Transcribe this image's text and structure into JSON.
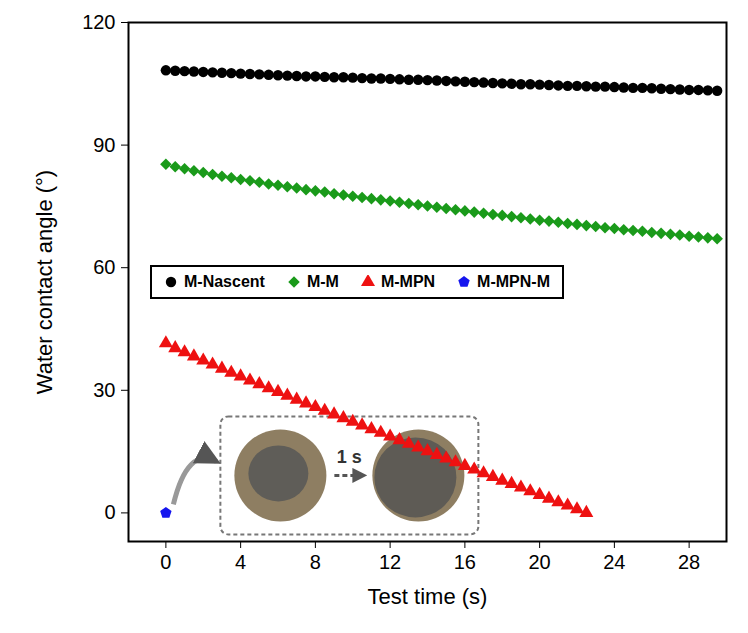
{
  "chart_data": {
    "type": "scatter",
    "x_label": "Test time (s)",
    "y_label": "Water contact angle (°)",
    "x": [
      0,
      0.5,
      1,
      1.5,
      2,
      2.5,
      3,
      3.5,
      4,
      4.5,
      5,
      5.5,
      6,
      6.5,
      7,
      7.5,
      8,
      8.5,
      9,
      9.5,
      10,
      10.5,
      11,
      11.5,
      12,
      12.5,
      13,
      13.5,
      14,
      14.5,
      15,
      15.5,
      16,
      16.5,
      17,
      17.5,
      18,
      18.5,
      19,
      19.5,
      20,
      20.5,
      21,
      21.5,
      22,
      22.5,
      23,
      23.5,
      24,
      24.5,
      25,
      25.5,
      26,
      26.5,
      27,
      27.5,
      28,
      28.5,
      29,
      29.5
    ],
    "series": [
      {
        "name": "M-Nascent",
        "color": "#000000",
        "marker": "circle",
        "values": [
          108.3,
          108.2,
          108.1,
          108.0,
          107.9,
          107.8,
          107.7,
          107.6,
          107.5,
          107.4,
          107.3,
          107.2,
          107.1,
          107.0,
          106.9,
          106.8,
          106.8,
          106.7,
          106.6,
          106.6,
          106.5,
          106.4,
          106.3,
          106.3,
          106.2,
          106.1,
          106.0,
          106.0,
          105.9,
          105.8,
          105.7,
          105.6,
          105.5,
          105.4,
          105.3,
          105.2,
          105.1,
          105.0,
          104.9,
          104.9,
          104.8,
          104.7,
          104.6,
          104.5,
          104.5,
          104.4,
          104.3,
          104.3,
          104.2,
          104.1,
          104.0,
          104.0,
          103.9,
          103.8,
          103.7,
          103.6,
          103.5,
          103.5,
          103.4,
          103.3
        ]
      },
      {
        "name": "M-M",
        "color": "#1a9a1a",
        "marker": "diamond",
        "values": [
          85.3,
          84.7,
          84.2,
          83.7,
          83.3,
          82.8,
          82.4,
          82.0,
          81.6,
          81.3,
          80.9,
          80.5,
          80.2,
          79.8,
          79.5,
          79.1,
          78.8,
          78.5,
          78.1,
          77.8,
          77.5,
          77.2,
          76.9,
          76.6,
          76.3,
          76.0,
          75.7,
          75.4,
          75.1,
          74.8,
          74.5,
          74.2,
          73.9,
          73.6,
          73.3,
          73.0,
          72.8,
          72.5,
          72.2,
          71.9,
          71.6,
          71.4,
          71.1,
          70.8,
          70.6,
          70.3,
          70.1,
          69.8,
          69.6,
          69.3,
          69.1,
          68.9,
          68.6,
          68.4,
          68.2,
          68.0,
          67.7,
          67.5,
          67.3,
          67.1
        ]
      },
      {
        "name": "M-MPN",
        "color": "#ee1111",
        "marker": "triangle",
        "values": [
          41.5,
          40.3,
          39.3,
          38.3,
          37.3,
          36.3,
          35.3,
          34.3,
          33.4,
          32.4,
          31.5,
          30.5,
          29.6,
          28.7,
          27.7,
          26.8,
          25.9,
          25.0,
          24.1,
          23.2,
          22.3,
          21.4,
          20.5,
          19.6,
          18.7,
          17.8,
          16.9,
          16.0,
          15.1,
          14.2,
          13.3,
          12.4,
          11.5,
          10.6,
          9.7,
          8.8,
          7.9,
          7.1,
          6.2,
          5.3,
          4.4,
          3.5,
          2.6,
          1.8,
          0.9,
          0.0,
          null,
          null,
          null,
          null,
          null,
          null,
          null,
          null,
          null,
          null,
          null,
          null,
          null,
          null
        ]
      },
      {
        "name": "M-MPN-M",
        "color": "#1515ee",
        "marker": "pentagon",
        "values": [
          0,
          null,
          null,
          null,
          null,
          null,
          null,
          null,
          null,
          null,
          null,
          null,
          null,
          null,
          null,
          null,
          null,
          null,
          null,
          null,
          null,
          null,
          null,
          null,
          null,
          null,
          null,
          null,
          null,
          null,
          null,
          null,
          null,
          null,
          null,
          null,
          null,
          null,
          null,
          null,
          null,
          null,
          null,
          null,
          null,
          null,
          null,
          null,
          null,
          null,
          null,
          null,
          null,
          null,
          null,
          null,
          null,
          null,
          null,
          null
        ]
      }
    ],
    "xlim": [
      -2,
      30
    ],
    "ylim": [
      -7,
      120
    ],
    "xticks": [
      0,
      4,
      8,
      12,
      16,
      20,
      24,
      28
    ],
    "yticks": [
      0,
      30,
      60,
      90,
      120
    ],
    "legend": "top",
    "annotations": [
      "1 s"
    ]
  }
}
